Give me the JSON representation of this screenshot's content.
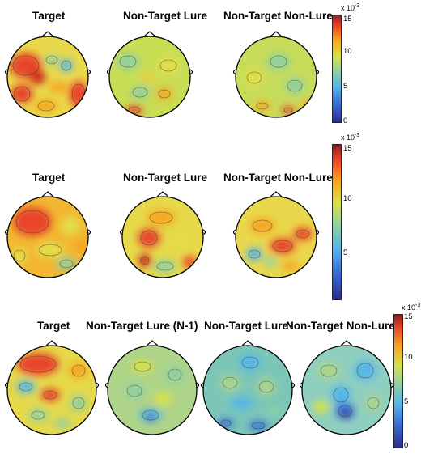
{
  "rows": [
    {
      "labels": [
        "Target",
        "Non-Target Lure",
        "Non-Target Non-Lure"
      ],
      "colorbar": {
        "min": 0,
        "max": 15,
        "ticks": [
          "15",
          "10",
          "5",
          "0"
        ],
        "multiplier": "x 10",
        "exponent": "-3"
      }
    },
    {
      "labels": [
        "Target",
        "Non-Target Lure",
        "Non-Target Non-Lure"
      ],
      "colorbar": {
        "min": 0,
        "max": 15,
        "ticks": [
          "15",
          "10",
          "5"
        ],
        "multiplier": "x 10",
        "exponent": "-3"
      }
    },
    {
      "labels": [
        "Target",
        "Non-Target Lure (N-1)",
        "Non-Target Lure",
        "Non-Target Non-Lure"
      ],
      "colorbar": {
        "min": 0,
        "max": 15,
        "ticks": [
          "15",
          "10",
          "5",
          "0"
        ],
        "multiplier": "x 10",
        "exponent": "-3"
      }
    }
  ],
  "colormap": [
    "#2b2a8c",
    "#3b6fd6",
    "#55b6e8",
    "#8fd0a0",
    "#d8e04a",
    "#f6a623",
    "#e8452a",
    "#8e1b1b"
  ]
}
